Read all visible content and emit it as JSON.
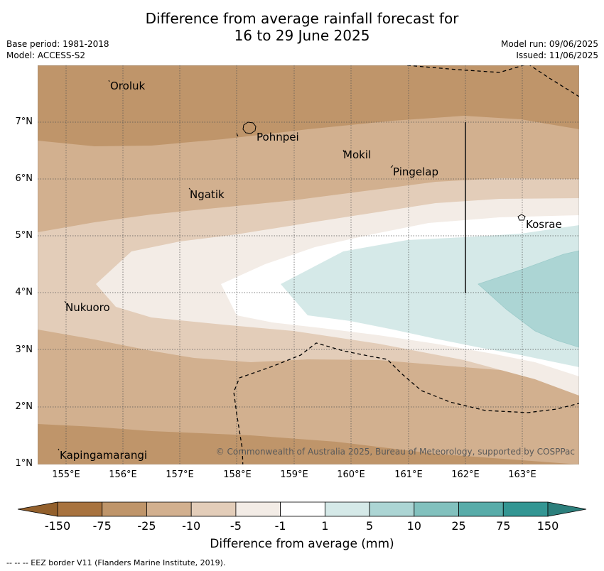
{
  "title_line1": "Difference from average rainfall forecast for",
  "title_line2": "16 to 29 June 2025",
  "base_period": "Base period: 1981-2018",
  "model": "Model: ACCESS-S2",
  "model_run": "Model run: 09/06/2025",
  "issued": "Issued: 11/06/2025",
  "copyright": "© Commonwealth of Australia 2025, Bureau of Meteorology, supported by COSPPac",
  "lat_ticks": [
    "7°N",
    "6°N",
    "5°N",
    "4°N",
    "3°N",
    "2°N",
    "1°N"
  ],
  "lon_ticks": [
    "155°E",
    "156°E",
    "157°E",
    "158°E",
    "159°E",
    "160°E",
    "161°E",
    "162°E",
    "163°E"
  ],
  "places": [
    {
      "name": "Oroluk"
    },
    {
      "name": "Pohnpei"
    },
    {
      "name": "Mokil"
    },
    {
      "name": "Pingelap"
    },
    {
      "name": "Ngatik"
    },
    {
      "name": "Kosrae"
    },
    {
      "name": "Nukuoro"
    },
    {
      "name": "Kapingamarangi"
    }
  ],
  "colorbar": {
    "title": "Difference from average (mm)",
    "labels": [
      "-150",
      "-75",
      "-25",
      "-10",
      "-5",
      "-1",
      "1",
      "5",
      "10",
      "25",
      "75",
      "150"
    ],
    "colors": [
      "#a8733f",
      "#bf956a",
      "#d2b08f",
      "#e3cdb9",
      "#f3ece6",
      "#ffffff",
      "#d5e9e8",
      "#acd5d4",
      "#82c1be",
      "#58aca9",
      "#339693"
    ],
    "extend_low_color": "#93602c",
    "extend_high_color": "#2c7f7c"
  },
  "footnote": "-- -- -- EEZ border V11 (Flanders Marine Institute, 2019)."
}
